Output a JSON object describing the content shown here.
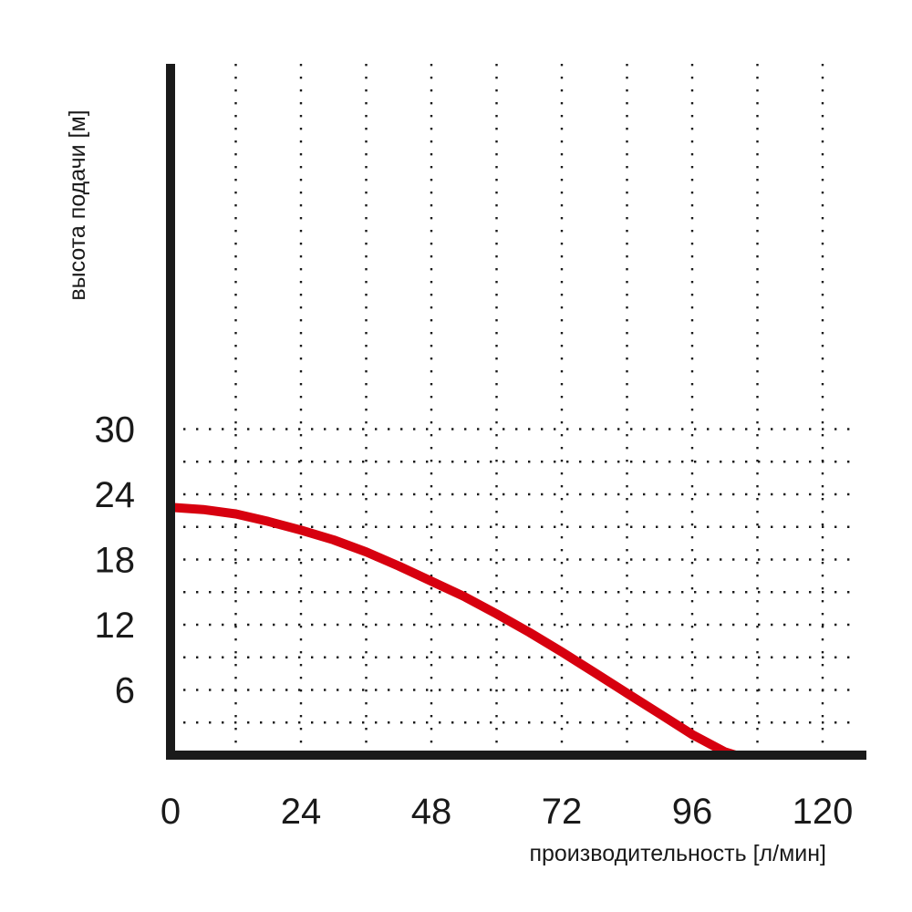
{
  "chart_data": {
    "type": "line",
    "title": "",
    "xlabel": "производительность [л/мин]",
    "ylabel": "высота подачи [м]",
    "xlim": [
      0,
      120
    ],
    "ylim": [
      0,
      30
    ],
    "x_ticks": [
      "0",
      "24",
      "48",
      "72",
      "96",
      "120"
    ],
    "y_ticks": [
      "6",
      "12",
      "18",
      "24",
      "30"
    ],
    "grid": true,
    "legend": "none",
    "series": [
      {
        "color": "#d7000f",
        "x": [
          0,
          6,
          12,
          18,
          24,
          30,
          36,
          42,
          48,
          54,
          60,
          66,
          72,
          78,
          84,
          90,
          96,
          102,
          104
        ],
        "y": [
          22.8,
          22.6,
          22.2,
          21.5,
          20.7,
          19.8,
          18.7,
          17.4,
          16.0,
          14.6,
          13.0,
          11.3,
          9.5,
          7.6,
          5.7,
          3.8,
          1.9,
          0.3,
          0
        ]
      }
    ]
  }
}
